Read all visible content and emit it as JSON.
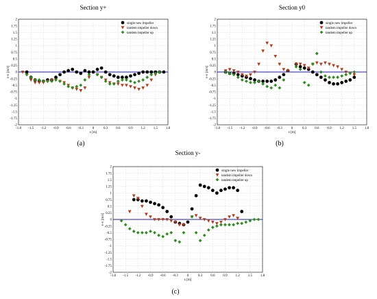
{
  "chart_data": [
    {
      "id": "a",
      "type": "scatter",
      "panel_label": "(a)",
      "title": "Section y+",
      "xlabel": "x [m]",
      "ylabel": "v-v [m/s]",
      "xlim": [
        -1.8,
        1.8
      ],
      "ylim": [
        -2,
        2
      ],
      "xticks": [
        "-1.8",
        "-1.5",
        "-1.2",
        "-0.9",
        "-0.6",
        "-0.3",
        "0",
        "0.3",
        "0.6",
        "0.9",
        "1.2",
        "1.5",
        "1.8"
      ],
      "yticks": [
        "-2",
        "-1.75",
        "-1.5",
        "-1.25",
        "-1",
        "-0.75",
        "-0.5",
        "-0.25",
        "0",
        "0.25",
        "0.5",
        "0.75",
        "1",
        "1.25",
        "1.5",
        "1.75",
        "2"
      ],
      "grid": true,
      "legend": "top-right",
      "series": [
        {
          "name": "single new impeller",
          "marker": "circle",
          "color": "#000000",
          "x": [
            -1.6,
            -1.5,
            -1.4,
            -1.3,
            -1.2,
            -1.1,
            -1.0,
            -0.9,
            -0.8,
            -0.7,
            -0.6,
            -0.5,
            -0.4,
            -0.3,
            -0.2,
            -0.1,
            0.0,
            0.1,
            0.2,
            0.3,
            0.4,
            0.5,
            0.6,
            0.7,
            0.8,
            0.9,
            1.0,
            1.1,
            1.2,
            1.3,
            1.4,
            1.5,
            1.6,
            1.7
          ],
          "y": [
            0.0,
            -0.2,
            -0.3,
            -0.35,
            -0.35,
            -0.3,
            -0.3,
            -0.2,
            -0.1,
            0.0,
            0.05,
            0.1,
            0.0,
            -0.05,
            0.05,
            0.0,
            0.0,
            0.1,
            0.15,
            0.0,
            -0.1,
            -0.15,
            -0.2,
            -0.2,
            -0.2,
            -0.15,
            -0.1,
            -0.05,
            0.0,
            0.0,
            0.0,
            0.0,
            0.0,
            0.0
          ]
        },
        {
          "name": "tandem impeller down",
          "marker": "triangle-down",
          "color": "#b33a1a",
          "x": [
            -1.7,
            -1.6,
            -1.5,
            -1.4,
            -1.3,
            -1.2,
            -1.1,
            -1.0,
            -0.9,
            -0.8,
            -0.7,
            -0.6,
            -0.5,
            -0.4,
            -0.3,
            -0.2,
            -0.1,
            0.1,
            0.2,
            0.3,
            0.4,
            0.5,
            0.6,
            0.7,
            0.8,
            0.9,
            1.0,
            1.1,
            1.2,
            1.3,
            1.4,
            1.5
          ],
          "y": [
            0.0,
            -0.1,
            -0.3,
            -0.4,
            -0.4,
            -0.4,
            -0.35,
            -0.3,
            -0.3,
            -0.35,
            -0.4,
            -0.5,
            -0.6,
            -0.65,
            -0.7,
            -0.6,
            -0.2,
            -0.1,
            -0.2,
            -0.3,
            -0.4,
            -0.45,
            -0.45,
            -0.5,
            -0.5,
            -0.55,
            -0.6,
            -0.65,
            -0.6,
            -0.5,
            -0.3,
            -0.1
          ]
        },
        {
          "name": "tandem impeller up",
          "marker": "diamond",
          "color": "#2e8b1e",
          "x": [
            -1.6,
            -1.5,
            -1.4,
            -1.3,
            -1.2,
            -1.1,
            -1.0,
            -0.9,
            -0.8,
            -0.7,
            -0.6,
            -0.5,
            -0.4,
            -0.3,
            -0.2,
            -0.1,
            0.1,
            0.2,
            0.3,
            0.4,
            0.5,
            0.6,
            0.7,
            0.8,
            0.9,
            1.0,
            1.1,
            1.2,
            1.3,
            1.4,
            1.5,
            1.6
          ],
          "y": [
            -0.1,
            -0.2,
            -0.3,
            -0.3,
            -0.35,
            -0.35,
            -0.35,
            -0.3,
            -0.35,
            -0.45,
            -0.55,
            -0.6,
            -0.55,
            -0.5,
            -0.3,
            -0.1,
            -0.1,
            -0.2,
            -0.35,
            -0.45,
            -0.45,
            -0.35,
            -0.3,
            -0.3,
            -0.35,
            -0.4,
            -0.35,
            -0.3,
            -0.2,
            -0.1,
            -0.05,
            0.0
          ]
        }
      ]
    },
    {
      "id": "b",
      "type": "scatter",
      "panel_label": "(b)",
      "title": "Section y0",
      "xlabel": "x [m]",
      "ylabel": "v-v [m/s]",
      "xlim": [
        -1.8,
        1.8
      ],
      "ylim": [
        -2,
        2
      ],
      "xticks": [
        "-1.8",
        "-1.5",
        "-1.2",
        "-0.9",
        "-0.6",
        "-0.3",
        "0",
        "0.3",
        "0.6",
        "0.9",
        "1.2",
        "1.5",
        "1.8"
      ],
      "yticks": [
        "-2",
        "-1.75",
        "-1.5",
        "-1.25",
        "-1",
        "-0.75",
        "-0.5",
        "-0.25",
        "0",
        "0.25",
        "0.5",
        "0.75",
        "1",
        "1.25",
        "1.5",
        "1.75",
        "2"
      ],
      "grid": true,
      "legend": "top-right",
      "series": [
        {
          "name": "single new impeller",
          "marker": "circle",
          "color": "#000000",
          "x": [
            -1.6,
            -1.5,
            -1.4,
            -1.3,
            -1.2,
            -1.1,
            -1.0,
            -0.9,
            -0.8,
            -0.7,
            -0.6,
            -0.5,
            -0.4,
            -0.3,
            -0.2,
            -0.1,
            0.1,
            0.2,
            0.3,
            0.4,
            0.5,
            0.6,
            0.7,
            0.8,
            0.9,
            1.0,
            1.1,
            1.2,
            1.3,
            1.4,
            1.5
          ],
          "y": [
            0.0,
            -0.05,
            -0.05,
            -0.1,
            -0.15,
            -0.2,
            -0.25,
            -0.3,
            -0.35,
            -0.35,
            -0.35,
            -0.35,
            -0.3,
            -0.2,
            -0.1,
            0.05,
            0.3,
            0.2,
            0.15,
            0.1,
            0.0,
            -0.1,
            -0.2,
            -0.3,
            -0.4,
            -0.45,
            -0.45,
            -0.4,
            -0.35,
            -0.3,
            -0.2
          ]
        },
        {
          "name": "tandem impeller down",
          "marker": "triangle-down",
          "color": "#b33a1a",
          "x": [
            -1.6,
            -1.5,
            -1.4,
            -1.3,
            -1.2,
            -1.1,
            -1.0,
            -0.9,
            -0.8,
            -0.7,
            -0.6,
            -0.5,
            -0.4,
            -0.3,
            -0.2,
            -0.1,
            0.1,
            0.2,
            0.3,
            0.4,
            0.5,
            0.6,
            0.7,
            0.8,
            0.9,
            1.0,
            1.1,
            1.2,
            1.3,
            1.4,
            1.5
          ],
          "y": [
            0.05,
            0.1,
            0.05,
            0.0,
            -0.1,
            -0.15,
            -0.1,
            0.0,
            0.3,
            0.8,
            1.1,
            1.0,
            0.6,
            0.3,
            0.1,
            0.05,
            0.3,
            0.3,
            0.25,
            0.15,
            0.3,
            0.35,
            0.3,
            0.35,
            0.3,
            0.25,
            0.2,
            0.1,
            0.0,
            -0.05,
            -0.1
          ]
        },
        {
          "name": "tandem impeller up",
          "marker": "diamond",
          "color": "#2e8b1e",
          "x": [
            -1.6,
            -1.5,
            -1.4,
            -1.3,
            -1.2,
            -1.1,
            -1.0,
            -0.9,
            -0.8,
            -0.7,
            -0.6,
            -0.5,
            -0.4,
            -0.3,
            -0.2,
            0.1,
            0.2,
            0.3,
            0.4,
            0.5,
            0.6,
            0.7,
            0.8,
            0.9,
            1.0,
            1.1,
            1.2,
            1.3,
            1.4,
            1.5
          ],
          "y": [
            0.0,
            -0.05,
            -0.1,
            -0.2,
            -0.3,
            -0.35,
            -0.4,
            -0.4,
            -0.35,
            -0.45,
            -0.55,
            -0.6,
            -0.5,
            -0.6,
            -0.3,
            0.2,
            0.1,
            -0.4,
            -0.5,
            0.3,
            0.7,
            0.0,
            -0.15,
            -0.2,
            -0.2,
            -0.2,
            -0.15,
            -0.1,
            -0.05,
            0.0
          ]
        }
      ]
    },
    {
      "id": "c",
      "type": "scatter",
      "panel_label": "(c)",
      "title": "Section y-",
      "xlabel": "x [m]",
      "ylabel": "v-v [m/s]",
      "xlim": [
        -1.8,
        1.8
      ],
      "ylim": [
        -2,
        2
      ],
      "xticks": [
        "-1.8",
        "-1.5",
        "-1.2",
        "-0.9",
        "-0.6",
        "-0.3",
        "0",
        "0.3",
        "0.6",
        "0.9",
        "1.2",
        "1.5",
        "1.8"
      ],
      "yticks": [
        "-2",
        "-1.75",
        "-1.5",
        "-1.25",
        "-1",
        "-0.75",
        "-0.5",
        "-0.25",
        "0",
        "0.25",
        "0.5",
        "0.75",
        "1",
        "1.25",
        "1.5",
        "1.75",
        "2"
      ],
      "grid": true,
      "legend": "top-right",
      "series": [
        {
          "name": "single new impeller",
          "marker": "circle",
          "color": "#000000",
          "x": [
            -1.3,
            -1.2,
            -1.1,
            -1.0,
            -0.9,
            -0.8,
            -0.7,
            -0.6,
            -0.5,
            -0.4,
            -0.3,
            -0.2,
            -0.1,
            0.0,
            0.1,
            0.2,
            0.3,
            0.4,
            0.5,
            0.6,
            0.7,
            0.8,
            0.9,
            1.0,
            1.1,
            1.2,
            1.3
          ],
          "y": [
            0.75,
            0.75,
            0.7,
            0.7,
            0.65,
            0.6,
            0.55,
            0.45,
            0.3,
            0.1,
            -0.1,
            -0.15,
            -0.2,
            -0.1,
            0.4,
            0.9,
            1.3,
            1.25,
            1.2,
            1.1,
            1.0,
            1.1,
            1.15,
            1.2,
            1.2,
            1.1,
            0.3
          ]
        },
        {
          "name": "tandem impeller down",
          "marker": "triangle-down",
          "color": "#b33a1a",
          "x": [
            -1.4,
            -1.3,
            -1.2,
            -1.1,
            -1.0,
            -0.9,
            -0.8,
            -0.7,
            -0.6,
            -0.5,
            -0.4,
            -0.3,
            -0.2,
            -0.1,
            0.1,
            0.2,
            0.3,
            0.4,
            0.5,
            0.6,
            0.7,
            0.8,
            0.9,
            1.0,
            1.1,
            1.2
          ],
          "y": [
            0.3,
            0.9,
            0.8,
            0.5,
            0.2,
            0.1,
            0.0,
            0.0,
            0.0,
            0.0,
            -0.05,
            -0.1,
            -0.2,
            -0.2,
            0.1,
            0.15,
            0.05,
            0.0,
            -0.05,
            -0.1,
            -0.15,
            -0.1,
            0.0,
            0.1,
            0.15,
            0.05
          ]
        },
        {
          "name": "tandem impeller up",
          "marker": "diamond",
          "color": "#2e8b1e",
          "x": [
            -1.6,
            -1.5,
            -1.4,
            -1.3,
            -1.2,
            -1.1,
            -1.0,
            -0.9,
            -0.8,
            -0.7,
            -0.6,
            -0.5,
            -0.4,
            -0.3,
            -0.2,
            -0.1,
            0.1,
            0.2,
            0.3,
            0.4,
            0.5,
            0.6,
            0.7,
            0.8,
            0.9,
            1.0,
            1.1,
            1.2,
            1.3,
            1.4,
            1.5,
            1.6,
            1.7
          ],
          "y": [
            -0.05,
            -0.2,
            -0.35,
            -0.45,
            -0.5,
            -0.5,
            -0.5,
            -0.45,
            -0.5,
            -0.6,
            -0.65,
            -0.55,
            -0.5,
            -0.8,
            -0.85,
            -0.5,
            0.1,
            -0.5,
            -0.8,
            -0.6,
            -0.4,
            -0.3,
            -0.25,
            -0.2,
            -0.2,
            -0.2,
            -0.2,
            -0.15,
            -0.15,
            -0.1,
            -0.05,
            0.0,
            0.0
          ]
        }
      ]
    }
  ]
}
